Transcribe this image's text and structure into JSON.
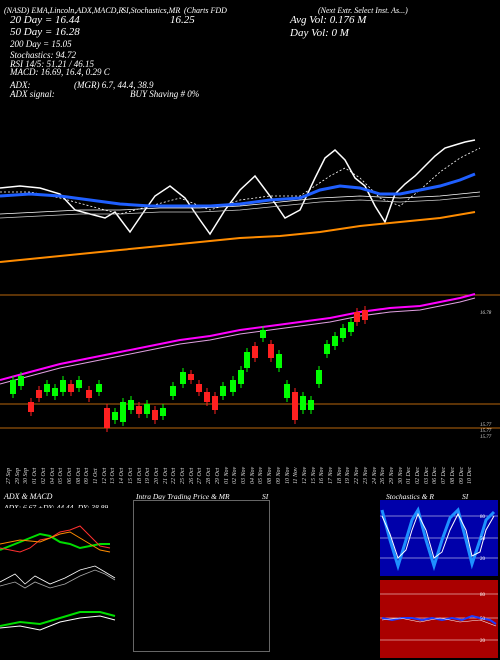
{
  "header": {
    "line1_a": "(NASD) EMA,Lincoln,ADX,MACD,R",
    "line1_b": "SI,Stochastics,MR",
    "line1_c": "(Charts FDD",
    "line1_d": "(Next Extr. Select Inst. As...)",
    "sma20": "20 Day = 16.44",
    "price": "16.25",
    "avg_vol": "Avg Vol: 0.176  M",
    "sma50": "50 Day = 16.28",
    "day_vol": "Day Vol: 0   M",
    "sma200": "200 Day = 15.05",
    "stoch": "Stochastics: 94.72",
    "rsi": "RSI 14/5: 51.21 / 46.15",
    "macd": "MACD: 16.69, 16.4, 0.29 C",
    "adx": "ADX:",
    "adx_val": "(MGR) 6.7, 44.4, 38.9",
    "adx_signal": "ADX  signal:",
    "signal_val": "BUY Shaving # 0%"
  },
  "price_labels": {
    "p1": "16.78",
    "p2": "15.77",
    "p3": "15.77",
    "p4": "15.77"
  },
  "dates": [
    "27 Sep",
    "29 Sep",
    "30 Sep",
    "01 Oct",
    "02 Oct",
    "04 Oct",
    "05 Oct",
    "06 Oct",
    "08 Oct",
    "09 Oct",
    "11 Oct",
    "12 Oct",
    "13 Oct",
    "14 Oct",
    "15 Oct",
    "18 Oct",
    "19 Oct",
    "20 Oct",
    "21 Oct",
    "22 Oct",
    "25 Oct",
    "26 Oct",
    "27 Oct",
    "28 Oct",
    "29 Oct",
    "01 Nov",
    "02 Nov",
    "03 Nov",
    "04 Nov",
    "05 Nov",
    "08 Nov",
    "09 Nov",
    "10 Nov",
    "11 Nov",
    "12 Nov",
    "15 Nov",
    "16 Nov",
    "17 Nov",
    "18 Nov",
    "19 Nov",
    "22 Nov",
    "23 Nov",
    "24 Nov",
    "26 Nov",
    "29 Nov",
    "30 Nov",
    "01 Dec",
    "02 Dec",
    "03 Dec",
    "06 Dec",
    "07 Dec",
    "08 Dec",
    "09 Dec",
    "10 Dec"
  ],
  "panels": {
    "adx_title": "ADX  & MACD",
    "adx_readout": "ADX: 6.67  +DY: 44.44  -DY: 38.89",
    "intraday_title": "Intra  Day Trading Price  & MR",
    "intraday_si": "SI",
    "stoch_title": "Stochastics & R",
    "stoch_si": "SI"
  },
  "colors": {
    "bg": "#000000",
    "up": "#00ff00",
    "down": "#ff2020",
    "sma200": "#ff8c00",
    "sma50": "#1f5fff",
    "bb": "#ff00ff",
    "stoch_bg": "#0000aa",
    "rsi_bg": "#aa0000"
  }
}
